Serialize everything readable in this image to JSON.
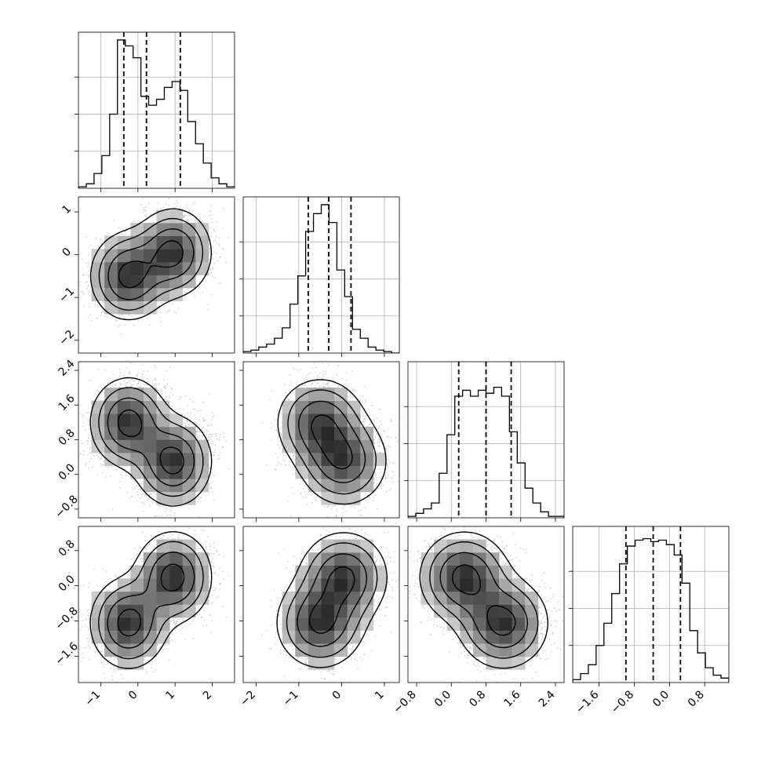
{
  "chart_data": {
    "type": "corner",
    "title": "",
    "dims": [
      {
        "range": [
          -1.6,
          2.6
        ],
        "ticks": [
          -1,
          0,
          1,
          2
        ],
        "tick_labels": [
          "−1",
          "0",
          "1",
          "2"
        ],
        "quantiles": [
          -0.38,
          0.23,
          1.14
        ]
      },
      {
        "range": [
          -2.3,
          1.35
        ],
        "ticks": [
          -2,
          -1,
          0,
          1
        ],
        "tick_labels": [
          "−2",
          "−1",
          "0",
          "1"
        ],
        "quantiles": [
          -0.78,
          -0.3,
          0.22
        ]
      },
      {
        "range": [
          -1.0,
          2.6
        ],
        "ticks": [
          -0.8,
          0.0,
          0.8,
          1.6,
          2.4
        ],
        "tick_labels": [
          "−0.8",
          "0.0",
          "0.8",
          "1.6",
          "2.4"
        ],
        "quantiles": [
          0.17,
          0.8,
          1.38
        ]
      },
      {
        "range": [
          -2.2,
          1.35
        ],
        "ticks": [
          -1.6,
          -0.8,
          0.0,
          0.8
        ],
        "tick_labels": [
          "−1.6",
          "−0.8",
          "0.0",
          "0.8"
        ],
        "quantiles": [
          -0.99,
          -0.37,
          0.25
        ]
      }
    ],
    "mixture": [
      {
        "weight": 0.5,
        "mean": [
          -0.25,
          -0.5,
          1.2,
          -0.85
        ]
      },
      {
        "weight": 0.5,
        "mean": [
          0.95,
          0.05,
          0.3,
          0.2
        ]
      }
    ],
    "histograms": [
      [
        0.01,
        0.03,
        0.1,
        0.22,
        0.5,
        1.0,
        0.96,
        0.88,
        0.62,
        0.56,
        0.6,
        0.68,
        0.72,
        0.66,
        0.45,
        0.3,
        0.17,
        0.07,
        0.03,
        0.01
      ],
      [
        0.01,
        0.02,
        0.04,
        0.06,
        0.1,
        0.17,
        0.33,
        0.52,
        0.82,
        0.94,
        1.0,
        0.88,
        0.56,
        0.38,
        0.16,
        0.1,
        0.04,
        0.02,
        0.01,
        0.0
      ],
      [
        0.01,
        0.03,
        0.06,
        0.1,
        0.3,
        0.56,
        0.82,
        0.86,
        0.82,
        0.86,
        0.84,
        0.88,
        0.82,
        0.58,
        0.37,
        0.2,
        0.1,
        0.04,
        0.01,
        0.01
      ],
      [
        0.02,
        0.06,
        0.12,
        0.25,
        0.4,
        0.6,
        0.8,
        0.92,
        0.96,
        0.97,
        0.95,
        0.96,
        0.93,
        0.86,
        0.67,
        0.35,
        0.2,
        0.1,
        0.05,
        0.03
      ]
    ],
    "grid": true,
    "quantile_line_style": "dashed"
  }
}
